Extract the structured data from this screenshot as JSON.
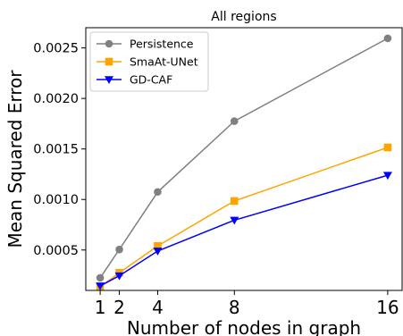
{
  "chart_data": {
    "type": "line",
    "title": "All regions",
    "xlabel": "Number of nodes in graph",
    "ylabel": "Mean Squared Error",
    "x": [
      1,
      2,
      4,
      8,
      16
    ],
    "xticks": [
      "1",
      "2",
      "4",
      "8",
      "16"
    ],
    "xlim": [
      0.25,
      16.75
    ],
    "ylim": [
      0.0001,
      0.0027
    ],
    "yticks": [
      {
        "value": 0.0005,
        "label": "0.0005"
      },
      {
        "value": 0.001,
        "label": "0.0010"
      },
      {
        "value": 0.0015,
        "label": "0.0015"
      },
      {
        "value": 0.002,
        "label": "0.0020"
      },
      {
        "value": 0.0025,
        "label": "0.0025"
      }
    ],
    "grid": false,
    "legend_position": "top-left",
    "series": [
      {
        "name": "Persistence",
        "color": "#808080",
        "marker": "circle",
        "values": [
          0.000225,
          0.000505,
          0.001075,
          0.001775,
          0.002595
        ]
      },
      {
        "name": "SmaAt-UNet",
        "color": "#FFA500",
        "marker": "square",
        "values": [
          0.000135,
          0.000275,
          0.00054,
          0.000985,
          0.001515
        ]
      },
      {
        "name": "GD-CAF",
        "color": "#0000FF",
        "marker": "triangle-down",
        "values": [
          0.000145,
          0.000245,
          0.00049,
          0.000795,
          0.00124
        ]
      }
    ]
  }
}
